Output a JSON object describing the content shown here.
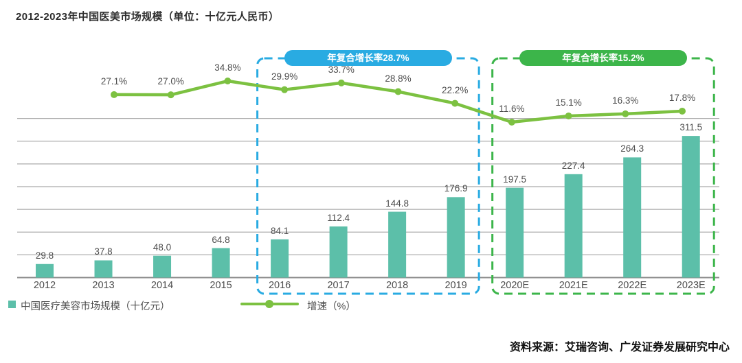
{
  "page": {
    "source": "资料来源：艾瑞咨询、广发证券发展研究中心"
  },
  "legend": {
    "bar_label": "中国医疗美容市场规模（十亿元）",
    "line_label": "增速（%）"
  },
  "colors": {
    "bar": "#5cbfa9",
    "line": "#7cc141",
    "cagr_blue": "#29abe2",
    "cagr_green": "#3cb54a",
    "grid": "#ababab",
    "axis": "#8c8c8c",
    "label_text": "#4d4d4d"
  },
  "chart_data": {
    "type": "bar",
    "title": "2012-2023年中国医美市场规模（单位：十亿元人民币）",
    "categories": [
      "2012",
      "2013",
      "2014",
      "2015",
      "2016",
      "2017",
      "2018",
      "2019",
      "2020E",
      "2021E",
      "2022E",
      "2023E"
    ],
    "series": [
      {
        "name": "中国医疗美容市场规模（十亿元）",
        "type": "bar",
        "color": "#5cbfa9",
        "values": [
          29.8,
          37.8,
          48.0,
          64.8,
          84.1,
          112.4,
          144.8,
          176.9,
          197.5,
          227.4,
          264.3,
          311.5
        ]
      },
      {
        "name": "增速（%）",
        "type": "line",
        "color": "#7cc141",
        "values": [
          null,
          27.1,
          27.0,
          34.8,
          29.9,
          33.7,
          28.8,
          22.2,
          11.6,
          15.1,
          16.3,
          17.8
        ]
      }
    ],
    "annotations": [
      {
        "label": "年复合增长率28.7%",
        "color": "#29abe2",
        "from": "2016",
        "to": "2019"
      },
      {
        "label": "年复合增长率15.2%",
        "color": "#3cb54a",
        "from": "2020E",
        "to": "2023E"
      }
    ],
    "xlabel": "",
    "ylabel": "",
    "ylim": [
      0,
      350
    ],
    "grid": "horizontal, step 50, no y tick labels",
    "legend_position": "bottom-left"
  }
}
